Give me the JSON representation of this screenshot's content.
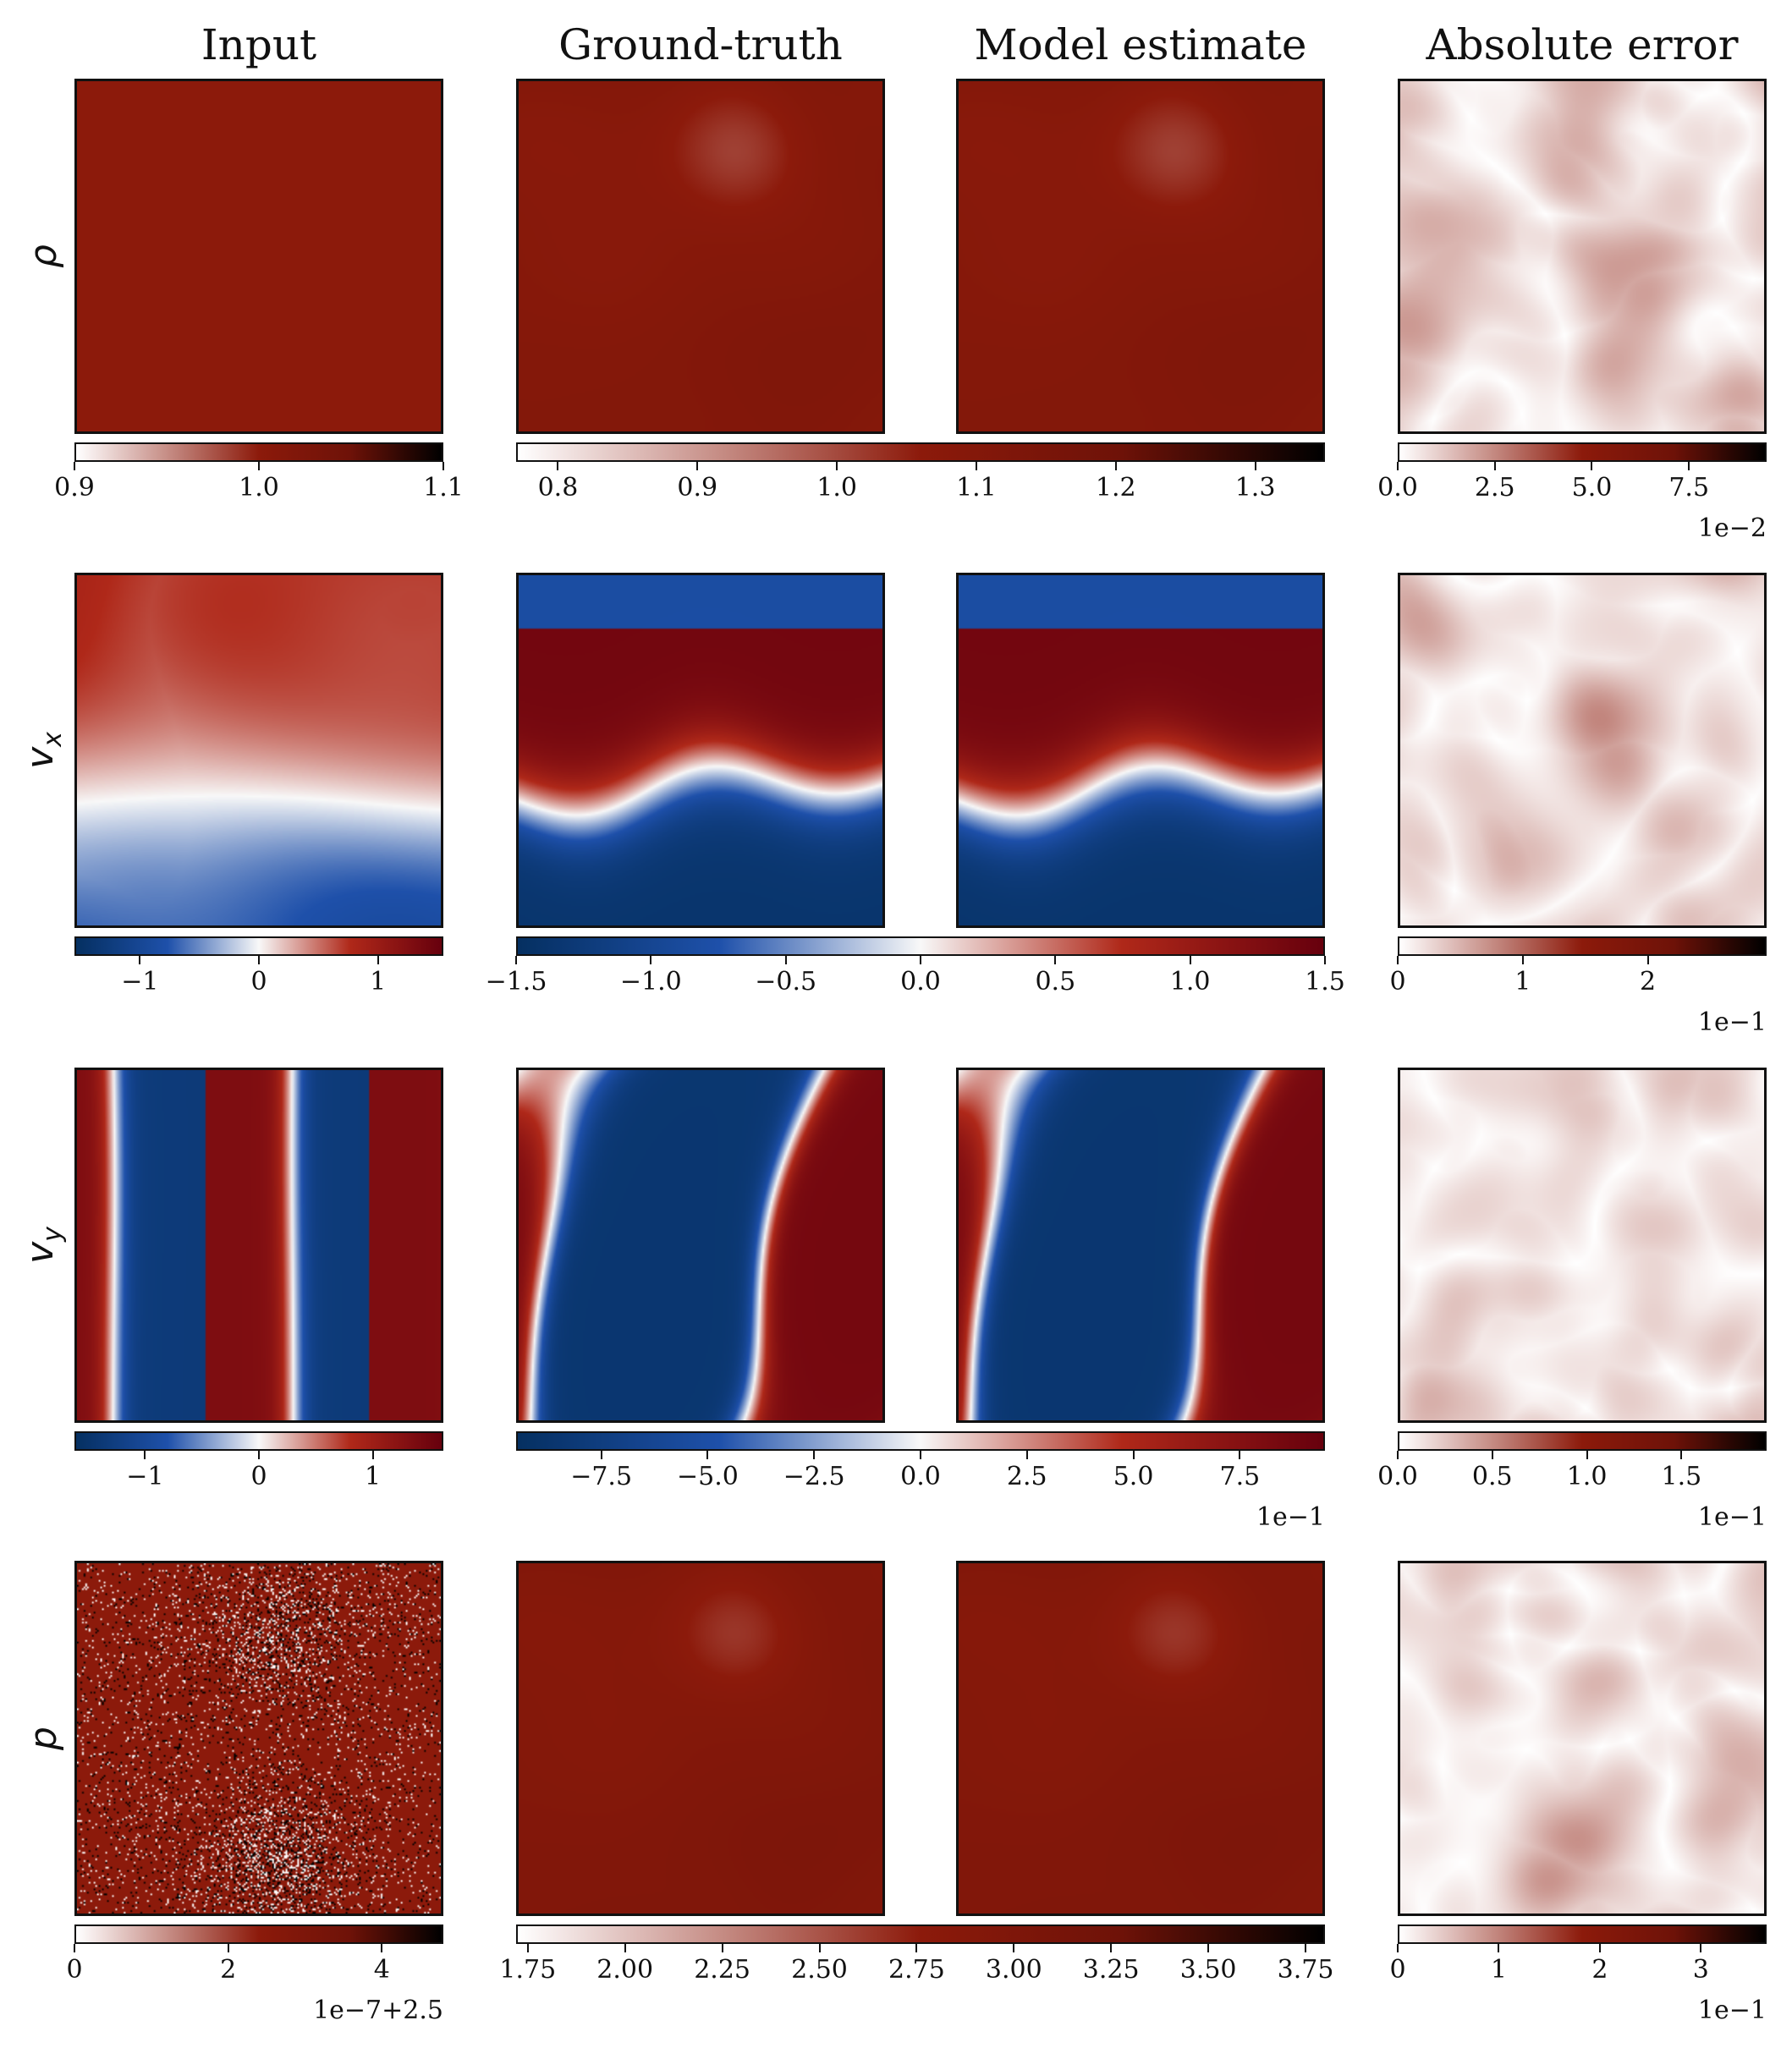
{
  "chart_data": {
    "type": "heatmap",
    "columns": [
      "Input",
      "Ground-truth",
      "Model estimate",
      "Absolute error"
    ],
    "rows": [
      {
        "label": "ρ",
        "sub": "",
        "colorbars": [
          {
            "column": "input",
            "cmap": "white-red-black",
            "range": [
              0.9,
              1.1
            ],
            "ticks": [
              "0.9",
              "1.0",
              "1.1"
            ],
            "tick_values": [
              0.9,
              1.0,
              1.1
            ],
            "offset": ""
          },
          {
            "column": "ground-truth-and-estimate",
            "cmap": "white-red-black",
            "range": [
              0.77,
              1.35
            ],
            "ticks": [
              "0.8",
              "0.9",
              "1.0",
              "1.1",
              "1.2",
              "1.3"
            ],
            "tick_values": [
              0.8,
              0.9,
              1.0,
              1.1,
              1.2,
              1.3
            ],
            "offset": ""
          },
          {
            "column": "absolute-error",
            "cmap": "white-red-black",
            "range": [
              0,
              9.5
            ],
            "ticks": [
              "0.0",
              "2.5",
              "5.0",
              "7.5"
            ],
            "tick_values": [
              0,
              2.5,
              5.0,
              7.5
            ],
            "offset": "1e−2"
          }
        ]
      },
      {
        "label": "v",
        "sub": "x",
        "colorbars": [
          {
            "column": "input",
            "cmap": "blue-white-red",
            "range": [
              -1.55,
              1.55
            ],
            "ticks": [
              "−1",
              "0",
              "1"
            ],
            "tick_values": [
              -1,
              0,
              1
            ],
            "offset": ""
          },
          {
            "column": "ground-truth-and-estimate",
            "cmap": "blue-white-red",
            "range": [
              -1.5,
              1.5
            ],
            "ticks": [
              "−1.5",
              "−1.0",
              "−0.5",
              "0.0",
              "0.5",
              "1.0",
              "1.5"
            ],
            "tick_values": [
              -1.5,
              -1.0,
              -0.5,
              0.0,
              0.5,
              1.0,
              1.5
            ],
            "offset": ""
          },
          {
            "column": "absolute-error",
            "cmap": "white-red-black",
            "range": [
              0,
              2.95
            ],
            "ticks": [
              "0",
              "1",
              "2"
            ],
            "tick_values": [
              0,
              1,
              2
            ],
            "offset": "1e−1"
          }
        ]
      },
      {
        "label": "v",
        "sub": "y",
        "colorbars": [
          {
            "column": "input",
            "cmap": "blue-white-red",
            "range": [
              -1.62,
              1.62
            ],
            "ticks": [
              "−1",
              "0",
              "1"
            ],
            "tick_values": [
              -1,
              0,
              1
            ],
            "offset": ""
          },
          {
            "column": "ground-truth-and-estimate",
            "cmap": "blue-white-red",
            "range": [
              -9.5,
              9.5
            ],
            "ticks": [
              "−7.5",
              "−5.0",
              "−2.5",
              "0.0",
              "2.5",
              "5.0",
              "7.5"
            ],
            "tick_values": [
              -7.5,
              -5.0,
              -2.5,
              0.0,
              2.5,
              5.0,
              7.5
            ],
            "offset": "1e−1"
          },
          {
            "column": "absolute-error",
            "cmap": "white-red-black",
            "range": [
              0,
              1.95
            ],
            "ticks": [
              "0.0",
              "0.5",
              "1.0",
              "1.5"
            ],
            "tick_values": [
              0,
              0.5,
              1.0,
              1.5
            ],
            "offset": "1e−1"
          }
        ]
      },
      {
        "label": "p",
        "sub": "",
        "colorbars": [
          {
            "column": "input",
            "cmap": "white-red-black",
            "range": [
              0,
              4.8
            ],
            "ticks": [
              "0",
              "2",
              "4"
            ],
            "tick_values": [
              0,
              2,
              4
            ],
            "offset": "1e−7+2.5"
          },
          {
            "column": "ground-truth-and-estimate",
            "cmap": "white-red-black",
            "range": [
              1.72,
              3.8
            ],
            "ticks": [
              "1.75",
              "2.00",
              "2.25",
              "2.50",
              "2.75",
              "3.00",
              "3.25",
              "3.50",
              "3.75"
            ],
            "tick_values": [
              1.75,
              2.0,
              2.25,
              2.5,
              2.75,
              3.0,
              3.25,
              3.5,
              3.75
            ],
            "offset": ""
          },
          {
            "column": "absolute-error",
            "cmap": "white-red-black",
            "range": [
              0,
              3.65
            ],
            "ticks": [
              "0",
              "1",
              "2",
              "3"
            ],
            "tick_values": [
              0,
              1,
              2,
              3
            ],
            "offset": "1e−1"
          }
        ]
      }
    ],
    "colors": {
      "blue": "#053061",
      "white": "#ffffff",
      "red": "#8c1a0b",
      "black": "#000000"
    }
  }
}
